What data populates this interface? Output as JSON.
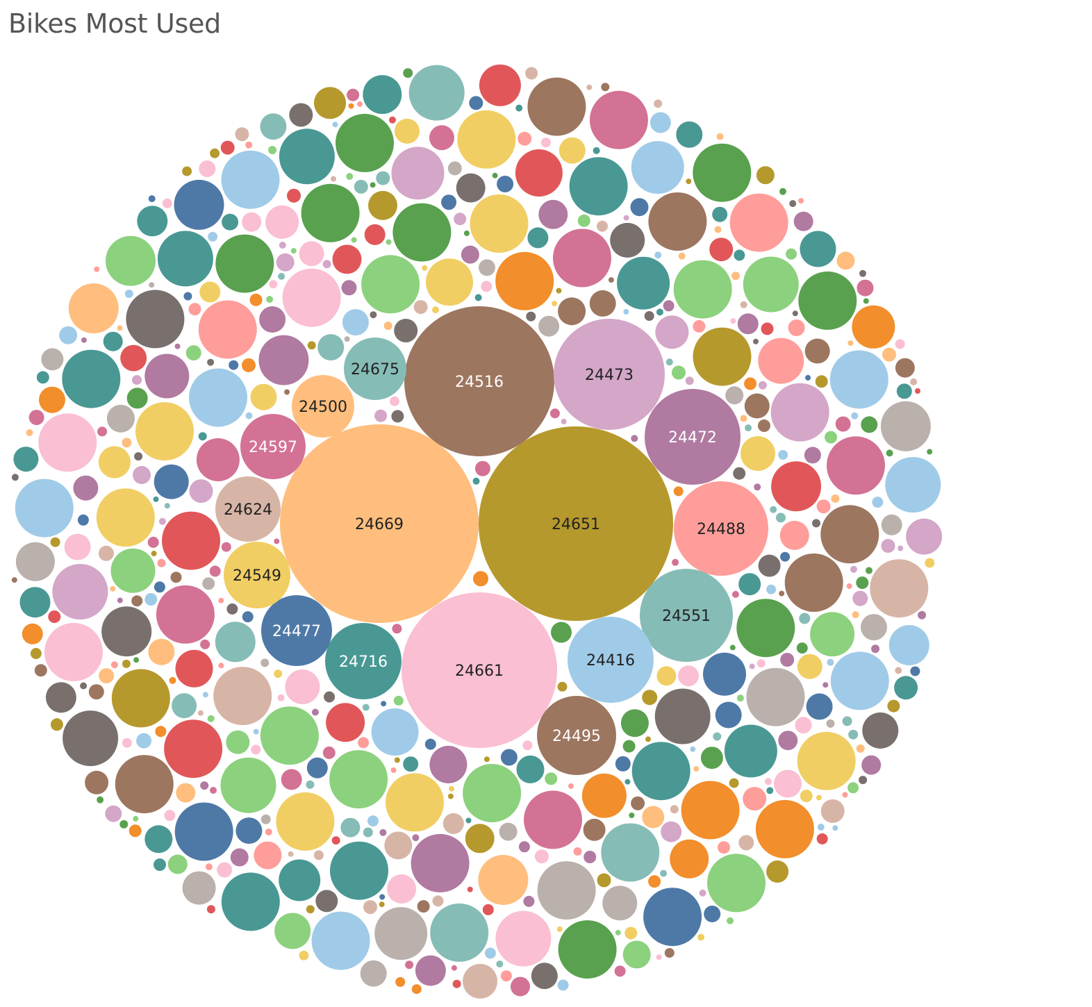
{
  "chart_data": {
    "type": "packed-bubble",
    "title": "Bikes Most Used",
    "colors": [
      "#4e79a7",
      "#a0cbe8",
      "#f28e2b",
      "#ffbe7d",
      "#59a14f",
      "#8cd17d",
      "#b6992d",
      "#f1ce63",
      "#499894",
      "#86bcb6",
      "#e15759",
      "#ff9d9a",
      "#79706e",
      "#bab0ac",
      "#d37295",
      "#fabfd2",
      "#b07aa1",
      "#d4a6c8",
      "#9d7660",
      "#d7b5a6"
    ],
    "labeled_bubbles": [
      {
        "label": "24669",
        "color": "#ffbe7d",
        "text_color": "#222222"
      },
      {
        "label": "24651",
        "color": "#b6992d",
        "text_color": "#222222"
      },
      {
        "label": "24661",
        "color": "#fabfd2",
        "text_color": "#222222"
      },
      {
        "label": "24516",
        "color": "#9d7660",
        "text_color": "#ffffff"
      },
      {
        "label": "24473",
        "color": "#d4a6c8",
        "text_color": "#222222"
      },
      {
        "label": "24472",
        "color": "#b07aa1",
        "text_color": "#ffffff"
      },
      {
        "label": "24488",
        "color": "#ff9d9a",
        "text_color": "#222222"
      },
      {
        "label": "24551",
        "color": "#86bcb6",
        "text_color": "#222222"
      },
      {
        "label": "24416",
        "color": "#a0cbe8",
        "text_color": "#222222"
      },
      {
        "label": "24495",
        "color": "#9d7660",
        "text_color": "#ffffff"
      },
      {
        "label": "24716",
        "color": "#499894",
        "text_color": "#ffffff"
      },
      {
        "label": "24477",
        "color": "#4e79a7",
        "text_color": "#ffffff"
      },
      {
        "label": "24549",
        "color": "#f1ce63",
        "text_color": "#222222"
      },
      {
        "label": "24624",
        "color": "#d7b5a6",
        "text_color": "#222222"
      },
      {
        "label": "24597",
        "color": "#d37295",
        "text_color": "#ffffff"
      },
      {
        "label": "24500",
        "color": "#ffbe7d",
        "text_color": "#222222"
      },
      {
        "label": "24675",
        "color": "#86bcb6",
        "text_color": "#222222"
      }
    ]
  }
}
